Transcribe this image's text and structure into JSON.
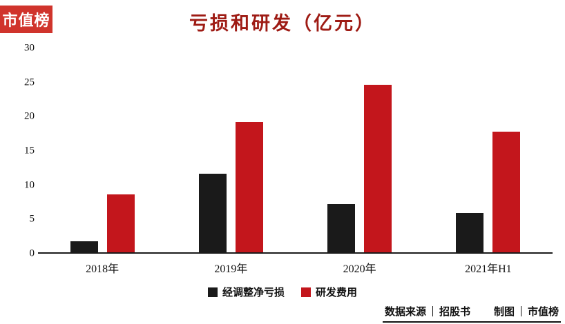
{
  "brand": {
    "badge_text": "市值榜",
    "badge_bg": "#d0342c",
    "badge_text_color": "#ffffff"
  },
  "title": {
    "text": "亏损和研发（亿元）",
    "color": "#9e1b14"
  },
  "chart_data": {
    "type": "bar",
    "title": "亏损和研发（亿元）",
    "categories": [
      "2018年",
      "2019年",
      "2020年",
      "2021年H1"
    ],
    "series": [
      {
        "name": "经调整净亏损",
        "color": "#1a1a1a",
        "values": [
          1.6,
          11.6,
          7.1,
          5.8
        ]
      },
      {
        "name": "研发费用",
        "color": "#c3161c",
        "values": [
          8.5,
          19.2,
          24.6,
          17.7
        ]
      }
    ],
    "xlabel": "",
    "ylabel": "",
    "ylim": [
      0,
      30
    ],
    "yticks": [
      0,
      5,
      10,
      15,
      20,
      25,
      30
    ],
    "grid": false,
    "legend_position": "bottom"
  },
  "footer": {
    "source_label": "数据来源",
    "source_value": "招股书",
    "credit_label": "制图",
    "credit_value": "市值榜"
  }
}
